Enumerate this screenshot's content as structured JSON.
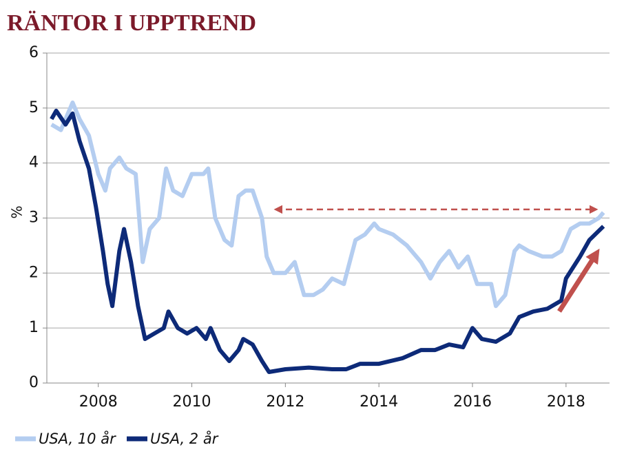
{
  "chart_data": {
    "type": "line",
    "title": "RÄNTOR I UPPTREND",
    "y_label": "%",
    "xlim": [
      2006.9,
      2018.93
    ],
    "xticks": [
      2008,
      2010,
      2012,
      2014,
      2016,
      2018
    ],
    "ylim": [
      0,
      6
    ],
    "yticks": [
      0,
      1,
      2,
      3,
      4,
      5,
      6
    ],
    "grid": true,
    "legend": "bottom",
    "series": [
      {
        "name": "USA, 10 år",
        "color": "#b4cdf0",
        "x": [
          2007.0,
          2007.2,
          2007.45,
          2007.6,
          2007.8,
          2008.0,
          2008.15,
          2008.25,
          2008.45,
          2008.6,
          2008.8,
          2008.95,
          2009.1,
          2009.3,
          2009.45,
          2009.6,
          2009.8,
          2010.0,
          2010.25,
          2010.35,
          2010.5,
          2010.7,
          2010.85,
          2011.0,
          2011.15,
          2011.3,
          2011.5,
          2011.6,
          2011.75,
          2011.9,
          2012.0,
          2012.2,
          2012.4,
          2012.6,
          2012.8,
          2013.0,
          2013.25,
          2013.5,
          2013.7,
          2013.9,
          2014.0,
          2014.3,
          2014.6,
          2014.9,
          2015.1,
          2015.3,
          2015.5,
          2015.7,
          2015.9,
          2016.1,
          2016.4,
          2016.5,
          2016.7,
          2016.9,
          2017.0,
          2017.2,
          2017.5,
          2017.7,
          2017.9,
          2018.1,
          2018.3,
          2018.5,
          2018.7,
          2018.8
        ],
        "values": [
          4.7,
          4.6,
          5.1,
          4.8,
          4.5,
          3.8,
          3.5,
          3.9,
          4.1,
          3.9,
          3.8,
          2.2,
          2.8,
          3.0,
          3.9,
          3.5,
          3.4,
          3.8,
          3.8,
          3.9,
          3.0,
          2.6,
          2.5,
          3.4,
          3.5,
          3.5,
          3.0,
          2.3,
          2.0,
          2.0,
          2.0,
          2.2,
          1.6,
          1.6,
          1.7,
          1.9,
          1.8,
          2.6,
          2.7,
          2.9,
          2.8,
          2.7,
          2.5,
          2.2,
          1.9,
          2.2,
          2.4,
          2.1,
          2.3,
          1.8,
          1.8,
          1.4,
          1.6,
          2.4,
          2.5,
          2.4,
          2.3,
          2.3,
          2.4,
          2.8,
          2.9,
          2.9,
          3.0,
          3.1
        ]
      },
      {
        "name": "USA, 2 år",
        "color": "#0d2a78",
        "x": [
          2007.0,
          2007.1,
          2007.3,
          2007.45,
          2007.6,
          2007.8,
          2007.95,
          2008.1,
          2008.2,
          2008.3,
          2008.45,
          2008.55,
          2008.7,
          2008.85,
          2009.0,
          2009.2,
          2009.4,
          2009.5,
          2009.7,
          2009.9,
          2010.1,
          2010.3,
          2010.4,
          2010.6,
          2010.8,
          2011.0,
          2011.1,
          2011.3,
          2011.5,
          2011.65,
          2012.0,
          2012.5,
          2013.0,
          2013.3,
          2013.6,
          2014.0,
          2014.5,
          2014.9,
          2015.2,
          2015.5,
          2015.8,
          2016.0,
          2016.2,
          2016.5,
          2016.8,
          2017.0,
          2017.3,
          2017.6,
          2017.9,
          2018.0,
          2018.3,
          2018.5,
          2018.8
        ],
        "values": [
          4.8,
          4.95,
          4.7,
          4.9,
          4.4,
          3.9,
          3.2,
          2.4,
          1.8,
          1.4,
          2.4,
          2.8,
          2.2,
          1.4,
          0.8,
          0.9,
          1.0,
          1.3,
          1.0,
          0.9,
          1.0,
          0.8,
          1.0,
          0.6,
          0.4,
          0.6,
          0.8,
          0.7,
          0.4,
          0.2,
          0.25,
          0.28,
          0.25,
          0.25,
          0.35,
          0.35,
          0.45,
          0.6,
          0.6,
          0.7,
          0.65,
          1.0,
          0.8,
          0.75,
          0.9,
          1.2,
          1.3,
          1.35,
          1.5,
          1.9,
          2.3,
          2.6,
          2.85
        ]
      }
    ]
  }
}
